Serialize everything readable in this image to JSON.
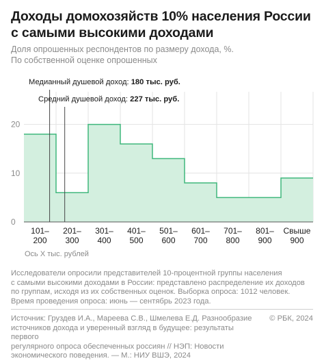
{
  "header": {
    "title": "Доходы домохозяйств 10% населения России с самыми высокими доходами",
    "subtitle_line1": "Доля опрошенных респондентов по размеру дохода, %.",
    "subtitle_line2": "По собственной оценке опрошенных"
  },
  "chart_data": {
    "type": "bar",
    "categories": [
      [
        "101–",
        "200"
      ],
      [
        "201–",
        "300"
      ],
      [
        "301–",
        "400"
      ],
      [
        "401–",
        "500"
      ],
      [
        "501–",
        "600"
      ],
      [
        "601–",
        "700"
      ],
      [
        "701–",
        "800"
      ],
      [
        "801–",
        "900"
      ],
      [
        "Свыше",
        "900"
      ]
    ],
    "values": [
      18,
      6,
      20,
      16,
      13,
      8,
      5,
      5,
      9
    ],
    "ylim": [
      0,
      25
    ],
    "yticks": [
      0,
      10,
      20
    ],
    "xlabel": "Ось Х тыс. рублей",
    "grid": true,
    "annotations": [
      {
        "label": "Медианный душевой доход: ",
        "value": "180 тыс. руб.",
        "x": 180
      },
      {
        "label": "Средний душевой доход: ",
        "value": "227 тыс. руб.",
        "x": 227
      }
    ]
  },
  "footer": {
    "note": [
      "Исследователи опросили представителей 10-процентной группы населения",
      "с самыми высокими доходами в России: представлено распределение их доходов",
      "по группам, исходя из их собственных оценок. Выборка опроса: 1012 человек.",
      "Время проведения опроса: июнь — сентябрь 2023 года."
    ],
    "source": [
      "Источник: Груздев И.А., Мареева С.В., Шмелева Е.Д. Разнообразие",
      "источников дохода и уверенный взгляд в будущее: результаты первого",
      "регулярного опроса обеспеченных россиян // НЭП: Новости",
      "экономического поведения. — М.: НИУ ВШЭ, 2024"
    ],
    "credit": "© РБК, 2024"
  },
  "colors": {
    "fill": "#d3efdf",
    "stroke": "#3fb77c",
    "grid": "#e3e3e3",
    "text": "#1a1a1a",
    "muted": "#8a8a8a"
  }
}
